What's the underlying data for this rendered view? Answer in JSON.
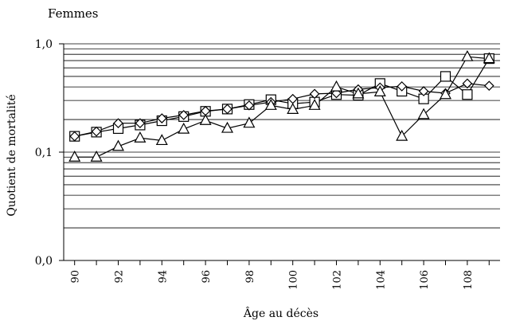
{
  "chart_data": {
    "type": "line",
    "title": "Femmes",
    "xlabel": "Âge au décès",
    "ylabel": "Quotient de mortalité",
    "yscale": "log",
    "ylim": [
      0.01,
      1.0
    ],
    "xlim": [
      89.5,
      109.5
    ],
    "y_tick_labels": [
      {
        "value": 1.0,
        "label": "1,0"
      },
      {
        "value": 0.1,
        "label": "0,1"
      },
      {
        "value": 0.01,
        "label": "0,0"
      }
    ],
    "x_ticks": [
      90,
      92,
      94,
      96,
      98,
      100,
      102,
      104,
      106,
      108
    ],
    "grid": "horizontal",
    "legend": "none",
    "series": [
      {
        "marker": "square",
        "x": [
          90,
          91,
          92,
          93,
          94,
          95,
          96,
          97,
          98,
          99,
          100,
          101,
          102,
          103,
          104,
          105,
          106,
          107,
          108,
          109
        ],
        "values": [
          0.14,
          0.153,
          0.165,
          0.178,
          0.195,
          0.213,
          0.238,
          0.25,
          0.275,
          0.305,
          0.28,
          0.29,
          0.34,
          0.335,
          0.43,
          0.365,
          0.31,
          0.5,
          0.34,
          0.73
        ]
      },
      {
        "marker": "diamond",
        "x": [
          90,
          91,
          92,
          93,
          94,
          95,
          96,
          97,
          98,
          99,
          100,
          101,
          102,
          103,
          104,
          105,
          106,
          107,
          108,
          109
        ],
        "values": [
          0.14,
          0.155,
          0.185,
          0.185,
          0.205,
          0.22,
          0.24,
          0.25,
          0.27,
          0.29,
          0.31,
          0.345,
          0.35,
          0.38,
          0.395,
          0.405,
          0.365,
          0.35,
          0.43,
          0.41
        ]
      },
      {
        "marker": "triangle",
        "x": [
          90,
          91,
          92,
          93,
          94,
          95,
          96,
          97,
          98,
          99,
          100,
          101,
          102,
          103,
          104,
          105,
          106,
          107,
          108,
          109
        ],
        "values": [
          0.09,
          0.09,
          0.113,
          0.135,
          0.128,
          0.163,
          0.196,
          0.166,
          0.185,
          0.27,
          0.248,
          0.27,
          0.4,
          0.345,
          0.36,
          0.14,
          0.222,
          0.34,
          0.76,
          0.73
        ]
      }
    ]
  }
}
